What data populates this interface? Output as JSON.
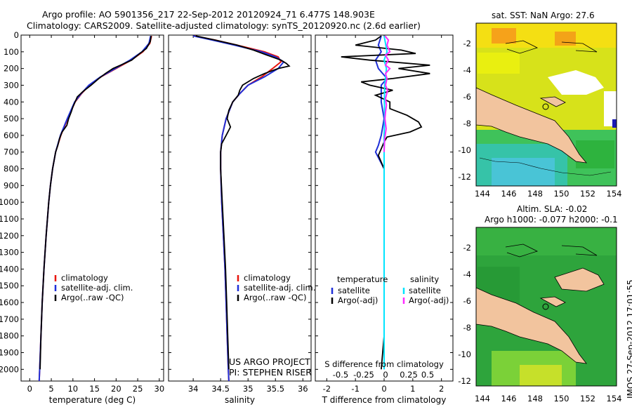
{
  "header": {
    "line1": "Argo profile: AO 5901356_217 22-Sep-2012 20120924_71 6.477S 148.903E",
    "line2": "Climatology: CARS2009. Satellite-adjusted climatology: synTS_20120920.nc (2.6d earlier)"
  },
  "footer_stamp": "IMOS 27-Sep-2012 17:01:55",
  "project_note": [
    "US ARGO PROJECT",
    "PI: STEPHEN RISER"
  ],
  "colors": {
    "climatology": "#e8140c",
    "satellite": "#1f2fd8",
    "argo": "#000000",
    "sat_salinity": "#00e5ff",
    "argo_salinity": "#ff2bff",
    "land": "#f2c49e"
  },
  "maps": {
    "sst_title": "sat. SST: NaN Argo: 27.6",
    "sla_title1": "Altim. SLA: -0.02",
    "sla_title2": "Argo h1000: -0.077 h2000: -0.1",
    "x_ticks": [
      "144",
      "146",
      "148",
      "150",
      "152",
      "154"
    ],
    "sst_y_ticks": [
      "-2",
      "-4",
      "-6",
      "-8",
      "-10",
      "-12"
    ],
    "sla_y_ticks": [
      "-2",
      "-4",
      "-6",
      "-8",
      "-10",
      "-12"
    ]
  },
  "chart_data": [
    {
      "type": "line",
      "panel": "temperature",
      "xlabel": "temperature (deg C)",
      "x_ticks": [
        "0",
        "5",
        "10",
        "15",
        "20",
        "25",
        "30"
      ],
      "xlim": [
        -2,
        31
      ],
      "ylim": [
        0,
        2070
      ],
      "y_ticks": [
        "0",
        "100",
        "200",
        "300",
        "400",
        "500",
        "600",
        "700",
        "800",
        "900",
        "1000",
        "1100",
        "1200",
        "1300",
        "1400",
        "1500",
        "1600",
        "1700",
        "1800",
        "1900",
        "2000"
      ],
      "legend": [
        "climatology",
        "satellite-adj. clim.",
        "Argo(..raw -QC)"
      ],
      "series": [
        {
          "name": "climatology",
          "color": "#e8140c",
          "depth": [
            5,
            50,
            100,
            150,
            200,
            250,
            300,
            350,
            400,
            500,
            600,
            700,
            800,
            900,
            1000,
            1200,
            1400,
            1600,
            1800,
            2000,
            2070
          ],
          "values": [
            28.2,
            27.8,
            26.2,
            23.5,
            20.0,
            16.5,
            13.8,
            12.0,
            10.5,
            8.8,
            7.2,
            6.0,
            5.3,
            4.8,
            4.4,
            3.8,
            3.3,
            2.9,
            2.6,
            2.3,
            2.2
          ]
        },
        {
          "name": "satellite-adj. clim.",
          "color": "#1f2fd8",
          "depth": [
            5,
            50,
            100,
            150,
            200,
            250,
            300,
            350,
            400,
            500,
            600,
            700,
            800,
            900,
            1000,
            1200,
            1400,
            1600,
            1800,
            2000,
            2070
          ],
          "values": [
            28.0,
            27.6,
            26.0,
            23.2,
            19.8,
            16.4,
            13.7,
            11.9,
            10.4,
            8.7,
            7.1,
            6.0,
            5.3,
            4.8,
            4.4,
            3.8,
            3.3,
            2.9,
            2.6,
            2.3,
            2.2
          ]
        },
        {
          "name": "Argo(..raw -QC)",
          "color": "#000000",
          "depth": [
            5,
            40,
            80,
            110,
            150,
            180,
            200,
            230,
            260,
            300,
            340,
            370,
            400,
            430,
            460,
            500,
            540,
            580,
            620,
            660,
            700,
            800,
            900,
            1000,
            1200,
            1400,
            1600,
            1800,
            2000
          ],
          "values": [
            28.1,
            27.9,
            27.0,
            25.5,
            23.6,
            21.0,
            19.3,
            17.5,
            16.0,
            14.2,
            12.2,
            11.0,
            10.5,
            10.0,
            9.6,
            9.0,
            8.6,
            7.5,
            6.9,
            6.5,
            6.0,
            5.3,
            4.8,
            4.4,
            3.8,
            3.3,
            2.9,
            2.6,
            2.4
          ]
        }
      ]
    },
    {
      "type": "line",
      "panel": "salinity",
      "xlabel": "salinity",
      "x_ticks": [
        "34",
        "34.5",
        "35",
        "35.5",
        "36"
      ],
      "xlim": [
        33.55,
        36.15
      ],
      "ylim": [
        0,
        2070
      ],
      "legend": [
        "climatology",
        "satellite-adj. clim.",
        "Argo(..raw -QC)"
      ],
      "series": [
        {
          "name": "climatology",
          "color": "#e8140c",
          "depth": [
            5,
            30,
            60,
            100,
            130,
            160,
            200,
            250,
            300,
            350,
            400,
            500,
            600,
            700,
            800,
            1000,
            1200,
            1400,
            1600,
            1800,
            2000,
            2070
          ],
          "values": [
            34.02,
            34.4,
            34.8,
            35.3,
            35.55,
            35.6,
            35.45,
            35.25,
            35.0,
            34.85,
            34.72,
            34.6,
            34.53,
            34.5,
            34.5,
            34.52,
            34.55,
            34.58,
            34.6,
            34.62,
            34.64,
            34.65
          ]
        },
        {
          "name": "satellite-adj. clim.",
          "color": "#1f2fd8",
          "depth": [
            5,
            30,
            60,
            100,
            130,
            160,
            200,
            250,
            300,
            350,
            400,
            500,
            600,
            700,
            800,
            1000,
            1200,
            1400,
            1600,
            1800,
            2000,
            2070
          ],
          "values": [
            34.0,
            34.35,
            34.75,
            35.25,
            35.5,
            35.65,
            35.55,
            35.3,
            35.0,
            34.85,
            34.72,
            34.6,
            34.53,
            34.5,
            34.5,
            34.52,
            34.55,
            34.58,
            34.6,
            34.62,
            34.64,
            34.65
          ]
        },
        {
          "name": "Argo(..raw -QC)",
          "color": "#000000",
          "depth": [
            5,
            30,
            60,
            90,
            120,
            150,
            170,
            185,
            200,
            230,
            260,
            300,
            330,
            360,
            400,
            450,
            500,
            550,
            600,
            650,
            700,
            800,
            1000,
            1200,
            1400,
            1600,
            1800,
            2000
          ],
          "values": [
            34.05,
            34.4,
            34.8,
            35.1,
            35.35,
            35.6,
            35.7,
            35.75,
            35.55,
            35.3,
            35.1,
            34.9,
            34.85,
            34.82,
            34.72,
            34.65,
            34.62,
            34.68,
            34.6,
            34.52,
            34.5,
            34.5,
            34.53,
            34.56,
            34.59,
            34.61,
            34.63,
            34.65
          ]
        }
      ]
    },
    {
      "type": "line",
      "panel": "differences",
      "xlabel": "T difference from climatology",
      "x_ticks": [
        "-2",
        "-1",
        "0",
        "1",
        "2"
      ],
      "xlim": [
        -2.4,
        2.4
      ],
      "secondary_xlabel": "S difference from climatology",
      "secondary_x_ticks": [
        "-0.5",
        "-0.25",
        "0",
        "0.25",
        "0.5"
      ],
      "ylim": [
        0,
        2070
      ],
      "legend": {
        "temperature": [
          "satellite",
          "Argo(-adj)"
        ],
        "salinity": [
          "satellite",
          "Argo(-adj)"
        ],
        "temperature_title": "temperature",
        "salinity_title": "salinity"
      },
      "series": [
        {
          "name": "satellite",
          "quantity": "temperature",
          "color": "#1f2fd8",
          "depth": [
            5,
            60,
            100,
            150,
            200,
            260,
            300,
            400,
            500,
            600,
            660,
            700,
            800,
            1000,
            1200,
            1500,
            2000
          ],
          "values": [
            -0.1,
            -0.2,
            -0.1,
            -0.3,
            -0.2,
            0.1,
            -0.1,
            -0.1,
            0,
            -0.1,
            -0.2,
            -0.3,
            0,
            0,
            0,
            0,
            0
          ]
        },
        {
          "name": "Argo(-adj)",
          "quantity": "temperature",
          "color": "#000000",
          "depth": [
            5,
            30,
            60,
            90,
            110,
            130,
            150,
            180,
            200,
            230,
            260,
            280,
            300,
            330,
            360,
            400,
            440,
            480,
            520,
            550,
            580,
            610,
            640,
            680,
            720,
            800,
            900,
            1000,
            1200,
            1500,
            1800,
            2000
          ],
          "values": [
            -0.1,
            -0.3,
            -1.0,
            0.6,
            1.1,
            -1.5,
            -0.5,
            1.6,
            0.5,
            1.6,
            0.3,
            -0.8,
            -0.5,
            0.3,
            -0.3,
            0.2,
            0.2,
            0.8,
            1.2,
            1.3,
            0.9,
            0.1,
            0,
            -0.1,
            -0.2,
            0,
            0,
            0,
            0,
            0,
            0,
            -0.1
          ]
        },
        {
          "name": "satellite",
          "quantity": "salinity",
          "color": "#00e5ff",
          "depth": [
            5,
            50,
            100,
            150,
            200,
            300,
            400,
            500,
            600,
            700,
            800,
            900,
            1000,
            1200,
            1500,
            1800,
            2000
          ],
          "values": [
            0,
            0.05,
            0.1,
            0,
            0.08,
            0.02,
            0.01,
            0.02,
            0,
            0,
            0,
            0,
            0,
            0,
            0,
            0,
            0
          ]
        },
        {
          "name": "Argo(-adj)",
          "quantity": "salinity",
          "color": "#ff2bff",
          "depth": [
            5,
            30,
            60,
            100,
            120,
            150,
            180,
            200,
            230,
            260,
            300,
            330,
            380,
            420,
            460,
            500,
            560,
            620,
            700
          ],
          "values": [
            0.03,
            0.15,
            0.1,
            0.2,
            0.05,
            0.15,
            0.05,
            0.2,
            0.05,
            0.1,
            0.05,
            0.12,
            0.05,
            0.08,
            0.05,
            0.03,
            0.07,
            0.02,
            0
          ]
        }
      ]
    }
  ]
}
